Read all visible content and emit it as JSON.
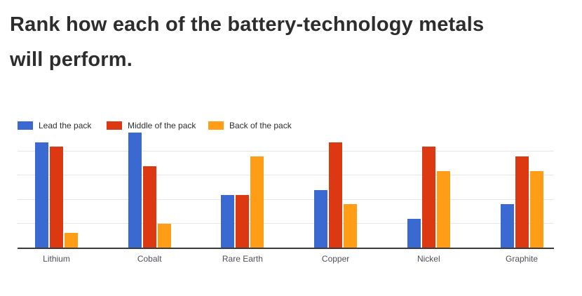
{
  "page": {
    "title": "Rank how each of the battery-technology metals will perform."
  },
  "colors": {
    "title_text": "#2d2d2d",
    "axis_line": "#3c3c3c",
    "gridline": "#e6e6e6",
    "category_label_text": "#4f5058",
    "legend_text": "#2f2f2f",
    "background": "#ffffff",
    "series_blue": "#3b69d2",
    "series_red": "#dc3912",
    "series_orange": "#ff9e16"
  },
  "chart_data": {
    "type": "bar",
    "title": "Rank how each of the battery-technology metals will perform.",
    "categories": [
      "Lithium",
      "Cobalt",
      "Rare Earth",
      "Copper",
      "Nickel",
      "Graphite"
    ],
    "series": [
      {
        "name": "Lead the pack",
        "color": "#3b69d2",
        "values": [
          44,
          48,
          22,
          24,
          12,
          18
        ]
      },
      {
        "name": "Middle of the pack",
        "color": "#dc3912",
        "values": [
          42,
          34,
          22,
          44,
          42,
          38
        ]
      },
      {
        "name": "Back of the pack",
        "color": "#ff9e16",
        "values": [
          6,
          10,
          38,
          18,
          32,
          32
        ]
      }
    ],
    "xlabel": "",
    "ylabel": "",
    "ylim": [
      0,
      50
    ],
    "gridlines": [
      10,
      20,
      30,
      40
    ],
    "y_axis_tick_labels_visible": false,
    "grid": true,
    "legend_position": "top-left"
  }
}
